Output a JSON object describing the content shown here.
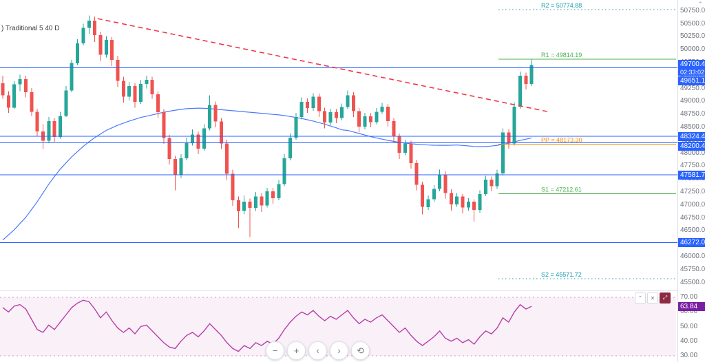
{
  "legend": {
    "text": ") Traditional 5 40 D"
  },
  "last_price": {
    "value": "49700.49",
    "num": 49700.49,
    "countdown": "02:33:02"
  },
  "price_lines": [
    {
      "value": 49651.15
    },
    {
      "value": 48324.41
    },
    {
      "value": 48200.4
    },
    {
      "value": 47581.72
    },
    {
      "value": 46272.02
    }
  ],
  "pivots": [
    {
      "name": "R2",
      "label": "R2 = 50774.88",
      "value": 50774.88,
      "style": "dotted",
      "color": "#1ba0ad"
    },
    {
      "name": "R1",
      "label": "R1 = 49814.19",
      "value": 49814.19,
      "style": "solid",
      "color": "#4caf50"
    },
    {
      "name": "PP",
      "label": "PP = 48173.30",
      "value": 48173.3,
      "style": "solid",
      "color": "#fb8c00"
    },
    {
      "name": "S1",
      "label": "S1 = 47212.61",
      "value": 47212.61,
      "style": "solid",
      "color": "#4caf50"
    },
    {
      "name": "S2",
      "label": "S2 = 45571.72",
      "value": 45571.72,
      "style": "dotted",
      "color": "#1ba0ad"
    }
  ],
  "y_axis": {
    "ticks": [
      45500,
      45750,
      46000,
      46250,
      46500,
      46750,
      47000,
      47250,
      47500,
      47750,
      48000,
      48250,
      48500,
      48750,
      49000,
      49250,
      49500,
      49750,
      50000,
      50250,
      50500,
      50750
    ],
    "decimals": 2
  },
  "rsi_axis": {
    "ticks": [
      30,
      40,
      50,
      60,
      70
    ],
    "decimals": 2,
    "current": "63.84",
    "current_num": 63.84
  },
  "toolbar": {
    "zoom_out": "−",
    "zoom_in": "+",
    "scroll_left": "‹",
    "scroll_right": "›",
    "reset": "⟲"
  },
  "pane_controls": {
    "up": "⌃",
    "close": "✕",
    "maximize": "⤢"
  },
  "axis_caret": "⌃",
  "colors": {
    "up": "#26a69a",
    "down": "#ef5350",
    "drawing_line": "#2962ff",
    "ma": "#2962ff",
    "trend": "#f23645",
    "rsi_line": "#b73fa8",
    "rsi_fill": "rgba(183,63,168,0.08)",
    "rsi_label_bg": "#7b1fa2",
    "axis_label_bg": "#2962ff"
  },
  "chart_data": {
    "type": "candlestick",
    "title": "",
    "y_range": {
      "top": 50960,
      "bottom": 45347
    },
    "candles": [
      [
        49350,
        49500,
        49050,
        49120
      ],
      [
        49120,
        49200,
        48780,
        48880
      ],
      [
        48880,
        49400,
        48850,
        49330
      ],
      [
        49330,
        49520,
        49200,
        49430
      ],
      [
        49430,
        49500,
        49080,
        49180
      ],
      [
        49180,
        49260,
        48720,
        48800
      ],
      [
        48800,
        48860,
        48330,
        48420
      ],
      [
        48420,
        48560,
        48080,
        48240
      ],
      [
        48240,
        48700,
        48200,
        48620
      ],
      [
        48620,
        48680,
        48220,
        48310
      ],
      [
        48310,
        48800,
        48280,
        48720
      ],
      [
        48720,
        49300,
        48700,
        49210
      ],
      [
        49210,
        49800,
        49180,
        49740
      ],
      [
        49740,
        50200,
        49700,
        50120
      ],
      [
        50120,
        50500,
        50080,
        50420
      ],
      [
        50420,
        50660,
        50300,
        50560
      ],
      [
        50560,
        50640,
        50150,
        50280
      ],
      [
        50280,
        50350,
        49780,
        49900
      ],
      [
        49900,
        50260,
        49850,
        50190
      ],
      [
        50190,
        50240,
        49680,
        49800
      ],
      [
        49800,
        49880,
        49280,
        49400
      ],
      [
        49400,
        49480,
        48980,
        49090
      ],
      [
        49090,
        49380,
        49020,
        49300
      ],
      [
        49300,
        49350,
        48880,
        48990
      ],
      [
        48990,
        49420,
        48950,
        49340
      ],
      [
        49340,
        49500,
        49250,
        49420
      ],
      [
        49420,
        49480,
        49050,
        49140
      ],
      [
        49140,
        49200,
        48680,
        48790
      ],
      [
        48790,
        48850,
        48180,
        48290
      ],
      [
        48290,
        48350,
        47780,
        47890
      ],
      [
        47890,
        47950,
        47280,
        47580
      ],
      [
        47580,
        47980,
        47520,
        47900
      ],
      [
        47900,
        48300,
        47860,
        48210
      ],
      [
        48210,
        48460,
        48150,
        48360
      ],
      [
        48360,
        48420,
        47980,
        48090
      ],
      [
        48090,
        48560,
        48050,
        48480
      ],
      [
        48480,
        49120,
        48440,
        48930
      ],
      [
        48930,
        49000,
        48500,
        48610
      ],
      [
        48610,
        48680,
        48080,
        48190
      ],
      [
        48190,
        48260,
        47480,
        47600
      ],
      [
        47600,
        47680,
        46980,
        47090
      ],
      [
        47090,
        47160,
        46550,
        46880
      ],
      [
        46880,
        47180,
        46820,
        47060
      ],
      [
        47060,
        47120,
        46380,
        46940
      ],
      [
        46940,
        47250,
        46880,
        47160
      ],
      [
        47160,
        47230,
        46860,
        46990
      ],
      [
        46990,
        47330,
        46950,
        47260
      ],
      [
        47260,
        47330,
        47020,
        47130
      ],
      [
        47130,
        47480,
        47090,
        47400
      ],
      [
        47400,
        47980,
        47360,
        47900
      ],
      [
        47900,
        48380,
        47860,
        48300
      ],
      [
        48300,
        48780,
        48260,
        48700
      ],
      [
        48700,
        49080,
        48650,
        48990
      ],
      [
        48990,
        49060,
        48780,
        48870
      ],
      [
        48870,
        49160,
        48820,
        49090
      ],
      [
        49090,
        49150,
        48700,
        48810
      ],
      [
        48810,
        48880,
        48480,
        48590
      ],
      [
        48590,
        48860,
        48540,
        48790
      ],
      [
        48790,
        48850,
        48580,
        48680
      ],
      [
        48680,
        48960,
        48640,
        48890
      ],
      [
        48890,
        49210,
        48850,
        49120
      ],
      [
        49120,
        49180,
        48700,
        48810
      ],
      [
        48810,
        48870,
        48400,
        48510
      ],
      [
        48510,
        48780,
        48460,
        48710
      ],
      [
        48710,
        48770,
        48500,
        48600
      ],
      [
        48600,
        48870,
        48560,
        48800
      ],
      [
        48800,
        48970,
        48760,
        48900
      ],
      [
        48900,
        48950,
        48510,
        48620
      ],
      [
        48620,
        48680,
        48210,
        48320
      ],
      [
        48320,
        48380,
        47890,
        48010
      ],
      [
        48010,
        48260,
        47960,
        48190
      ],
      [
        48190,
        48240,
        47700,
        47810
      ],
      [
        47810,
        47870,
        47280,
        47390
      ],
      [
        47390,
        47450,
        46820,
        46960
      ],
      [
        46960,
        47180,
        46900,
        47110
      ],
      [
        47110,
        47380,
        47060,
        47310
      ],
      [
        47310,
        47680,
        47260,
        47590
      ],
      [
        47590,
        47650,
        47120,
        47230
      ],
      [
        47230,
        47300,
        46890,
        47010
      ],
      [
        47010,
        47230,
        46960,
        47160
      ],
      [
        47160,
        47210,
        46840,
        46950
      ],
      [
        46950,
        47130,
        46890,
        47060
      ],
      [
        47060,
        47110,
        46680,
        46900
      ],
      [
        46900,
        47280,
        46850,
        47210
      ],
      [
        47210,
        47560,
        47170,
        47490
      ],
      [
        47490,
        47550,
        47260,
        47360
      ],
      [
        47360,
        47680,
        47310,
        47610
      ],
      [
        47610,
        48480,
        47570,
        48400
      ],
      [
        48400,
        48460,
        48090,
        48190
      ],
      [
        48190,
        48980,
        48150,
        48900
      ],
      [
        48900,
        49580,
        48860,
        49500
      ],
      [
        49500,
        49560,
        49230,
        49340
      ],
      [
        49340,
        49810,
        49300,
        49700
      ]
    ],
    "ma": [
      46320,
      46420,
      46520,
      46640,
      46760,
      46910,
      47060,
      47230,
      47400,
      47550,
      47690,
      47810,
      47930,
      48030,
      48130,
      48220,
      48300,
      48370,
      48440,
      48490,
      48540,
      48580,
      48620,
      48655,
      48690,
      48715,
      48740,
      48765,
      48790,
      48810,
      48830,
      48845,
      48860,
      48865,
      48870,
      48867,
      48860,
      48850,
      48840,
      48830,
      48820,
      48810,
      48800,
      48790,
      48780,
      48770,
      48760,
      48750,
      48740,
      48725,
      48710,
      48690,
      48670,
      48645,
      48620,
      48590,
      48560,
      48525,
      48490,
      48450,
      48440,
      48410,
      48380,
      48350,
      48320,
      48295,
      48270,
      48248,
      48228,
      48210,
      48195,
      48182,
      48172,
      48164,
      48158,
      48154,
      48152,
      48152,
      48154,
      48158,
      48150,
      48140,
      48130,
      48125,
      48128,
      48138,
      48152,
      48170,
      48192,
      48218,
      48248,
      48270,
      48295
    ],
    "rsi": {
      "upper_band": 70,
      "lower_band": 30,
      "last": 63.84,
      "values": [
        63,
        60,
        64,
        65,
        62,
        55,
        48,
        46,
        51,
        48,
        53,
        58,
        63,
        66,
        68,
        67,
        62,
        56,
        60,
        54,
        49,
        46,
        49,
        45,
        50,
        51,
        47,
        43,
        39,
        36,
        35,
        40,
        44,
        46,
        43,
        47,
        52,
        48,
        44,
        39,
        35,
        33,
        37,
        35,
        39,
        37,
        40,
        38,
        42,
        48,
        53,
        57,
        60,
        58,
        61,
        57,
        54,
        57,
        55,
        58,
        61,
        56,
        52,
        55,
        53,
        56,
        58,
        54,
        50,
        46,
        49,
        44,
        40,
        37,
        40,
        43,
        47,
        42,
        40,
        42,
        39,
        41,
        38,
        43,
        47,
        45,
        49,
        56,
        53,
        60,
        65,
        62,
        63.84
      ]
    },
    "trendline": {
      "from_bar": 16.5,
      "price1": 50600,
      "to_bar": 94.7,
      "price2": 48805,
      "style": "dashed"
    }
  }
}
